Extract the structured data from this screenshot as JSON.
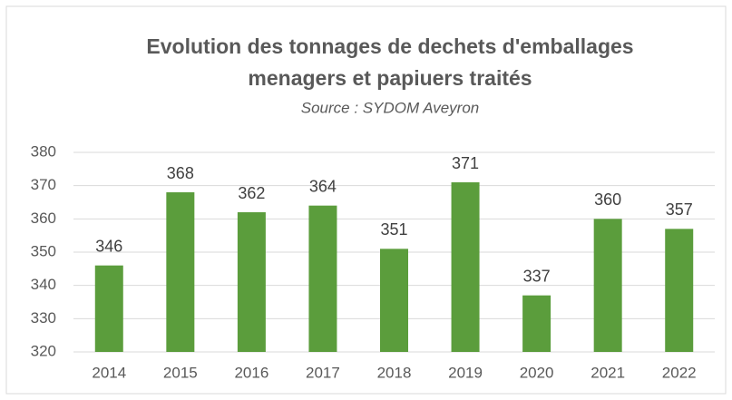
{
  "chart_data": {
    "type": "bar",
    "title": [
      "Evolution des tonnages de dechets d'emballages",
      "menagers et papiuers traités"
    ],
    "subtitle": "Source : SYDOM Aveyron",
    "categories": [
      "2014",
      "2015",
      "2016",
      "2017",
      "2018",
      "2019",
      "2020",
      "2021",
      "2022"
    ],
    "values": [
      346,
      368,
      362,
      364,
      351,
      371,
      337,
      360,
      357
    ],
    "color": "#5b9d3c",
    "ylim": [
      320,
      380
    ],
    "yticks": [
      320,
      330,
      340,
      350,
      360,
      370,
      380
    ],
    "grid": true
  }
}
